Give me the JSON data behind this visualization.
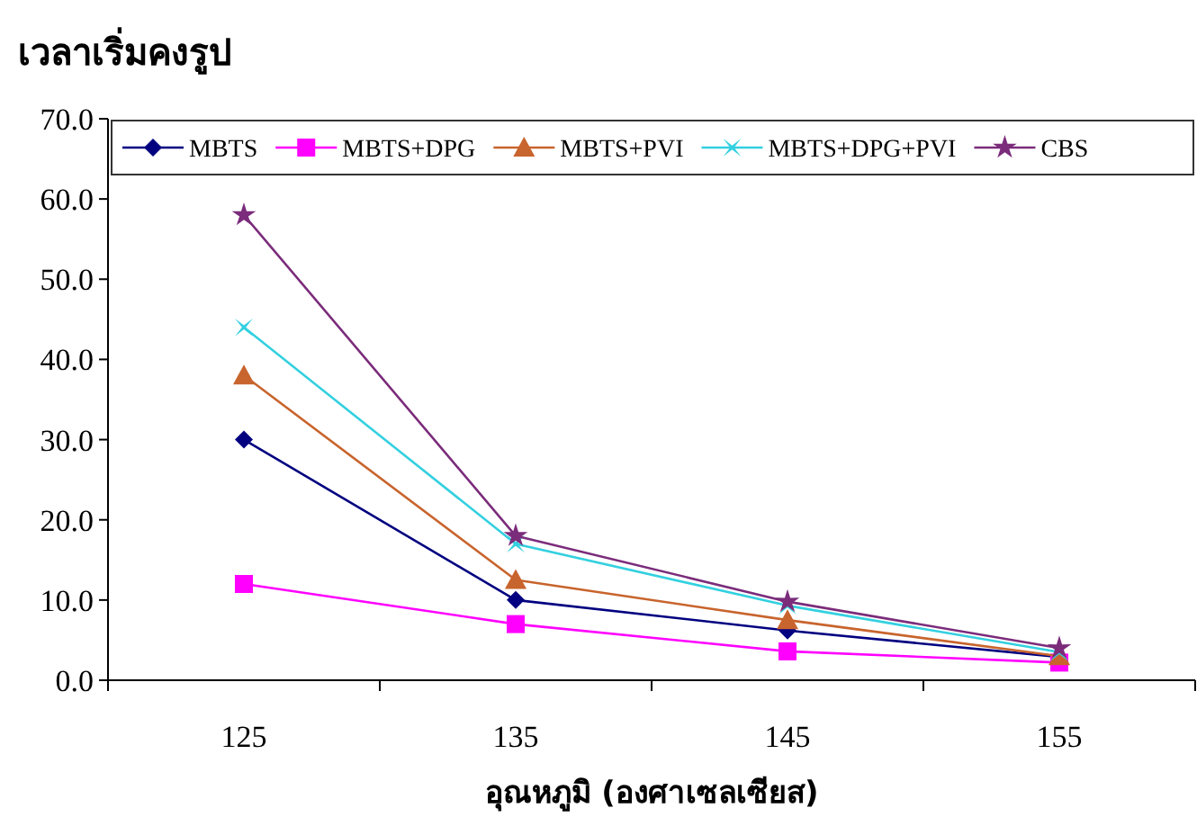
{
  "chart_data": {
    "type": "line",
    "title": "เวลาเริ่มคงรูป",
    "xlabel": "อุณหภูมิ (องศาเซลเซียส)",
    "categories": [
      "125",
      "135",
      "145",
      "155"
    ],
    "series": [
      {
        "name": "MBTS",
        "color": "#000080",
        "marker": "diamond",
        "values": [
          30.0,
          10.0,
          6.2,
          2.9
        ]
      },
      {
        "name": "MBTS+DPG",
        "color": "#ff00ff",
        "marker": "square",
        "values": [
          12.0,
          7.0,
          3.6,
          2.2
        ]
      },
      {
        "name": "MBTS+PVI",
        "color": "#c8642d",
        "marker": "triangle",
        "values": [
          38.0,
          12.5,
          7.5,
          3.0
        ]
      },
      {
        "name": "MBTS+DPG+PVI",
        "color": "#33d0e0",
        "marker": "cross",
        "values": [
          44.0,
          17.0,
          9.3,
          3.5
        ]
      },
      {
        "name": "CBS",
        "color": "#7b2c7b",
        "marker": "star",
        "values": [
          58.0,
          18.0,
          9.8,
          4.0
        ]
      }
    ],
    "ylim": [
      0,
      70
    ],
    "yticks": [
      {
        "value": 0,
        "label": "0.0"
      },
      {
        "value": 10,
        "label": "10.0"
      },
      {
        "value": 20,
        "label": "20.0"
      },
      {
        "value": 30,
        "label": "30.0"
      },
      {
        "value": 40,
        "label": "40.0"
      },
      {
        "value": 50,
        "label": "50.0"
      },
      {
        "value": 60,
        "label": "60.0"
      },
      {
        "value": 70,
        "label": "70.0"
      }
    ],
    "legend": "top",
    "grid": false,
    "line_style": "solid"
  }
}
